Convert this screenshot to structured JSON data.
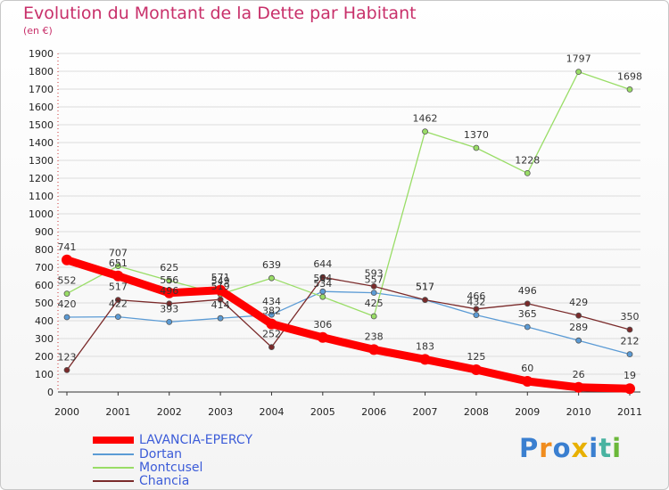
{
  "title": "Evolution du Montant de la Dette par Habitant",
  "subtitle": "(en €)",
  "logo": {
    "text": "Proxiti",
    "colors": [
      "#3a7fd0",
      "#f08c1e",
      "#3a7fd0",
      "#e8b000",
      "#3a7fd0",
      "#49b3a1",
      "#6bb839"
    ]
  },
  "chart_data": {
    "type": "line",
    "title": "Evolution du Montant de la Dette par Habitant",
    "ylabel": "(en €)",
    "ylim": [
      0,
      1900
    ],
    "yticks": [
      0,
      100,
      200,
      300,
      400,
      500,
      600,
      700,
      800,
      900,
      1000,
      1100,
      1200,
      1300,
      1400,
      1500,
      1600,
      1700,
      1800,
      1900
    ],
    "x": [
      "2000",
      "2001",
      "2002",
      "2003",
      "2004",
      "2005",
      "2006",
      "2007",
      "2008",
      "2009",
      "2010",
      "2011"
    ],
    "grid": true,
    "legend": "bottom-left",
    "series": [
      {
        "name": "Dortan",
        "color": "#5b9bd5",
        "values": [
          420,
          422,
          393,
          414,
          434,
          564,
          557,
          517,
          432,
          365,
          289,
          212
        ]
      },
      {
        "name": "Montcusel",
        "color": "#99dd66",
        "values": [
          552,
          707,
          625,
          549,
          639,
          534,
          425,
          1462,
          1370,
          1228,
          1797,
          1698
        ]
      },
      {
        "name": "Chancia",
        "color": "#7a2a2a",
        "values": [
          123,
          517,
          496,
          519,
          252,
          644,
          593,
          517,
          466,
          496,
          429,
          350
        ]
      },
      {
        "name": "LAVANCIA-EPERCY",
        "color": "#ff0000",
        "values": [
          741,
          651,
          556,
          571,
          382,
          306,
          238,
          183,
          125,
          60,
          26,
          19
        ]
      }
    ]
  }
}
